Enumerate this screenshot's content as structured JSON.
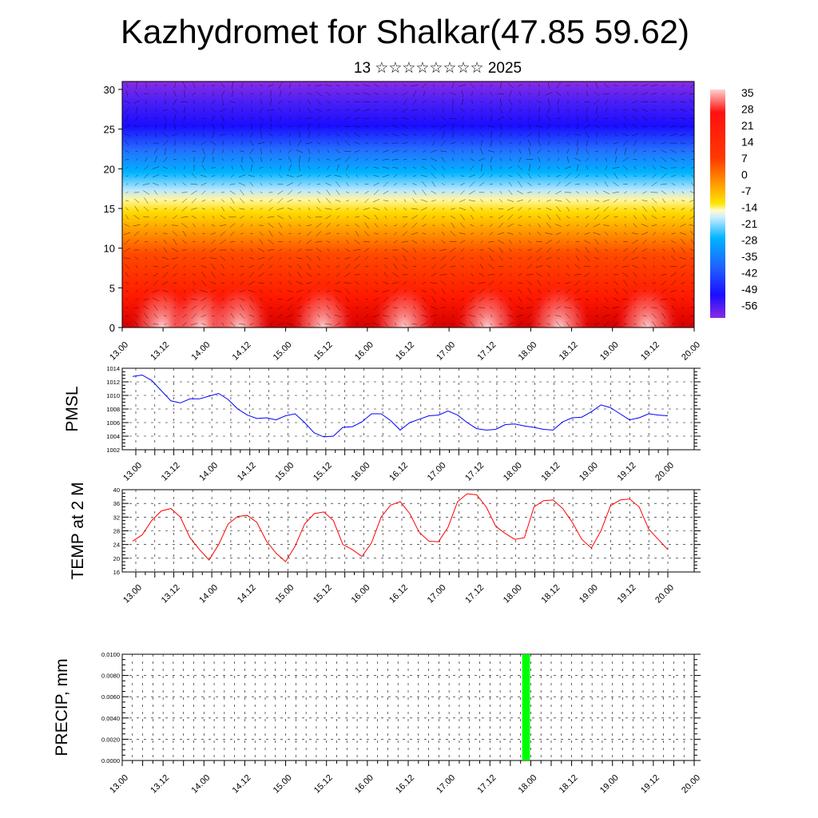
{
  "title": "Kazhydromet for Shalkar(47.85 59.62)",
  "subtitle": "13 ☆☆☆☆☆☆☆☆ 2025",
  "chart_data": [
    {
      "type": "heatmap",
      "name": "cross-section",
      "x_ticks": [
        "13.00",
        "13.12",
        "14.00",
        "14.12",
        "15.00",
        "15.12",
        "16.00",
        "16.12",
        "17.00",
        "17.12",
        "18.00",
        "18.12",
        "19.00",
        "19.12",
        "20.00"
      ],
      "y_ticks": [
        0,
        5,
        10,
        15,
        20,
        25,
        30
      ],
      "ylim": [
        0,
        31
      ],
      "colorbar_ticks": [
        "35",
        "28",
        "21",
        "14",
        "7",
        "0",
        "-7",
        "-14",
        "-21",
        "-28",
        "-35",
        "-42",
        "-49",
        "-56"
      ],
      "colorbar_range": [
        -60,
        38
      ],
      "colors": {
        "hot": "#ff0000",
        "warm": "#ffdc00",
        "cold": "#00aaff",
        "coldest": "#1a0dff",
        "top": "#8a2be2"
      },
      "overlay": "wind vectors"
    },
    {
      "type": "line",
      "name": "pmsl",
      "ylabel": "PMSL",
      "ylim": [
        1002,
        1014
      ],
      "y_ticks": [
        "1014",
        "1012",
        "1010",
        "1008",
        "1006",
        "1004",
        "1002"
      ],
      "x_ticks": [
        "13.00",
        "13.12",
        "14.00",
        "14.12",
        "15.00",
        "15.12",
        "16.00",
        "16.12",
        "17.00",
        "17.12",
        "18.00",
        "18.12",
        "19.00",
        "19.12",
        "20.00"
      ],
      "color": "#0000ff",
      "values": [
        1012.8,
        1013.0,
        1012.2,
        1010.7,
        1009.2,
        1008.9,
        1009.5,
        1009.5,
        1009.9,
        1010.3,
        1009.4,
        1008.0,
        1007.1,
        1006.6,
        1006.7,
        1006.4,
        1007.0,
        1007.3,
        1006.0,
        1004.5,
        1003.9,
        1004.0,
        1005.3,
        1005.4,
        1006.1,
        1007.3,
        1007.3,
        1006.3,
        1004.9,
        1006.0,
        1006.5,
        1007.0,
        1007.1,
        1007.7,
        1007.1,
        1006.0,
        1005.1,
        1004.9,
        1005.0,
        1005.7,
        1005.8,
        1005.5,
        1005.3,
        1005.0,
        1004.9,
        1006.1,
        1006.7,
        1006.8,
        1007.6,
        1008.6,
        1008.2,
        1007.3,
        1006.4,
        1006.7,
        1007.3,
        1007.1,
        1007.0
      ]
    },
    {
      "type": "line",
      "name": "temp",
      "ylabel": "TEMP at 2 M",
      "ylim": [
        16,
        40
      ],
      "y_ticks": [
        "40",
        "36",
        "32",
        "28",
        "24",
        "20",
        "16"
      ],
      "x_ticks": [
        "13.00",
        "13.12",
        "14.00",
        "14.12",
        "15.00",
        "15.12",
        "16.00",
        "16.12",
        "17.00",
        "17.12",
        "18.00",
        "18.12",
        "19.00",
        "19.12",
        "20.00"
      ],
      "color": "#ff0000",
      "values": [
        25,
        26.8,
        31,
        33.8,
        34.5,
        32,
        26,
        22.5,
        19.5,
        24,
        30,
        32.2,
        32.5,
        30.5,
        25,
        21.5,
        19,
        23.5,
        30,
        33,
        33.5,
        31,
        24,
        22.5,
        20.5,
        24.5,
        32,
        35.5,
        36.5,
        33,
        27.5,
        25,
        24.8,
        29,
        36.5,
        38.8,
        38.5,
        35,
        29.3,
        27.2,
        25.5,
        26,
        35,
        36.8,
        37,
        34.5,
        30.5,
        25.5,
        23,
        28,
        35.3,
        37,
        37.3,
        35,
        28.5,
        25.5,
        22.5
      ]
    },
    {
      "type": "bar",
      "name": "precip",
      "ylabel": "PRECIP, mm",
      "ylim": [
        0,
        0.01
      ],
      "y_ticks": [
        "0.0100",
        "0.0080",
        "0.0060",
        "0.0040",
        "0.0020",
        "0.0000"
      ],
      "x_ticks": [
        "13.00",
        "13.12",
        "14.00",
        "14.12",
        "15.00",
        "15.12",
        "16.00",
        "16.12",
        "17.00",
        "17.12",
        "18.00",
        "18.12",
        "19.00",
        "19.12",
        "20.00"
      ],
      "color": "#00ff00",
      "bars": [
        {
          "start_step": 39,
          "end_step": 40,
          "value": 0.01
        }
      ]
    }
  ]
}
